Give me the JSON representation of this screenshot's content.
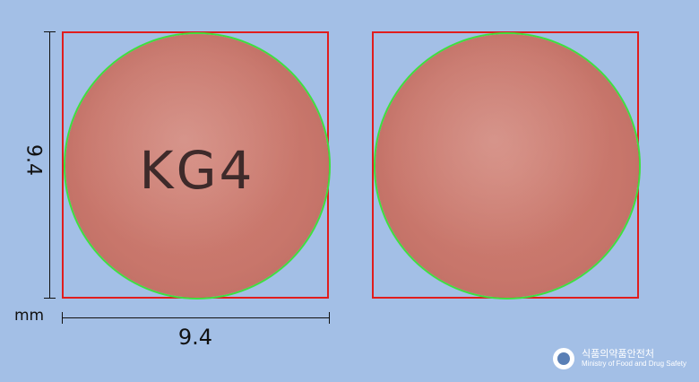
{
  "pills": {
    "front_imprint": "KG4",
    "color": "#c8766b"
  },
  "dimensions": {
    "height": "9.4",
    "width": "9.4",
    "unit": "mm"
  },
  "logo": {
    "korean": "식품의약품안전처",
    "english": "Ministry of Food and Drug Safety"
  }
}
